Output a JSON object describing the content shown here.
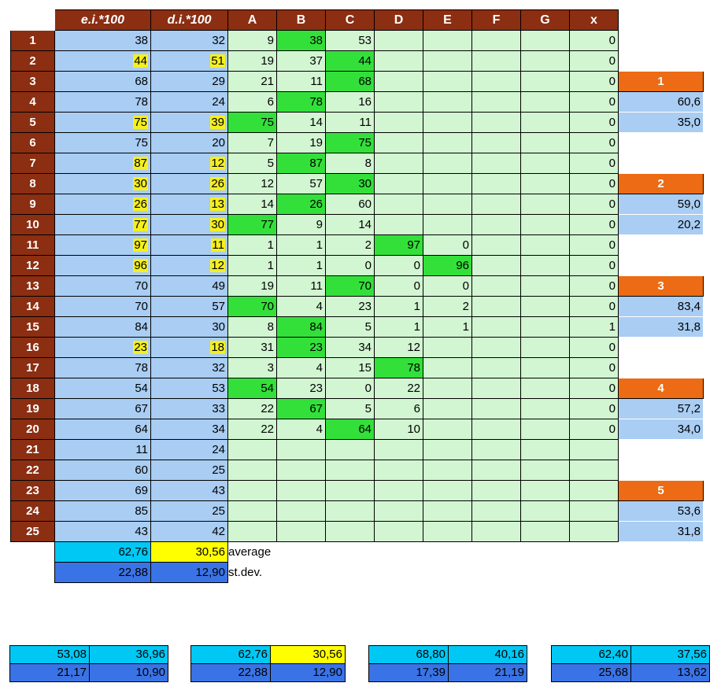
{
  "headers": [
    "",
    "e.i.*100",
    "d.i.*100",
    "A",
    "B",
    "C",
    "D",
    "E",
    "F",
    "G",
    "x",
    ""
  ],
  "rows": [
    {
      "n": "1",
      "ei": "38",
      "di": "32",
      "A": "9",
      "B": "38",
      "C": "53",
      "D": "",
      "E": "",
      "x": "0",
      "side": "",
      "hl": [
        "B"
      ]
    },
    {
      "n": "2",
      "ei": "44",
      "di": "51",
      "A": "19",
      "B": "37",
      "C": "44",
      "D": "",
      "E": "",
      "x": "0",
      "side": "",
      "hl": [
        "C"
      ],
      "yel": [
        "ei",
        "di"
      ]
    },
    {
      "n": "3",
      "ei": "68",
      "di": "29",
      "A": "21",
      "B": "11",
      "C": "68",
      "D": "",
      "E": "",
      "x": "0",
      "side": "1",
      "sideType": "orange",
      "hl": [
        "C"
      ]
    },
    {
      "n": "4",
      "ei": "78",
      "di": "24",
      "A": "6",
      "B": "78",
      "C": "16",
      "D": "",
      "E": "",
      "x": "0",
      "side": "60,6",
      "sideType": "blue",
      "hl": [
        "B"
      ]
    },
    {
      "n": "5",
      "ei": "75",
      "di": "39",
      "A": "75",
      "B": "14",
      "C": "11",
      "D": "",
      "E": "",
      "x": "0",
      "side": "35,0",
      "sideType": "blue",
      "hl": [
        "A"
      ],
      "yel": [
        "ei",
        "di"
      ]
    },
    {
      "n": "6",
      "ei": "75",
      "di": "20",
      "A": "7",
      "B": "19",
      "C": "75",
      "D": "",
      "E": "",
      "x": "0",
      "side": "",
      "hl": [
        "C"
      ]
    },
    {
      "n": "7",
      "ei": "87",
      "di": "12",
      "A": "5",
      "B": "87",
      "C": "8",
      "D": "",
      "E": "",
      "x": "0",
      "side": "",
      "hl": [
        "B"
      ],
      "yel": [
        "ei",
        "di"
      ]
    },
    {
      "n": "8",
      "ei": "30",
      "di": "26",
      "A": "12",
      "B": "57",
      "C": "30",
      "D": "",
      "E": "",
      "x": "0",
      "side": "2",
      "sideType": "orange",
      "hl": [
        "C"
      ],
      "yel": [
        "ei",
        "di"
      ]
    },
    {
      "n": "9",
      "ei": "26",
      "di": "13",
      "A": "14",
      "B": "26",
      "C": "60",
      "D": "",
      "E": "",
      "x": "0",
      "side": "59,0",
      "sideType": "blue",
      "hl": [
        "B"
      ],
      "yel": [
        "ei",
        "di"
      ]
    },
    {
      "n": "10",
      "ei": "77",
      "di": "30",
      "A": "77",
      "B": "9",
      "C": "14",
      "D": "",
      "E": "",
      "x": "0",
      "side": "20,2",
      "sideType": "blue",
      "hl": [
        "A"
      ],
      "yel": [
        "ei",
        "di"
      ]
    },
    {
      "n": "11",
      "ei": "97",
      "di": "11",
      "A": "1",
      "B": "1",
      "C": "2",
      "D": "97",
      "E": "0",
      "x": "0",
      "side": "",
      "hl": [
        "D"
      ],
      "yel": [
        "ei",
        "di"
      ]
    },
    {
      "n": "12",
      "ei": "96",
      "di": "12",
      "A": "1",
      "B": "1",
      "C": "0",
      "D": "0",
      "E": "96",
      "x": "0",
      "side": "",
      "hl": [
        "E"
      ],
      "yel": [
        "ei",
        "di"
      ]
    },
    {
      "n": "13",
      "ei": "70",
      "di": "49",
      "A": "19",
      "B": "11",
      "C": "70",
      "D": "0",
      "E": "0",
      "x": "0",
      "side": "3",
      "sideType": "orange",
      "hl": [
        "C"
      ]
    },
    {
      "n": "14",
      "ei": "70",
      "di": "57",
      "A": "70",
      "B": "4",
      "C": "23",
      "D": "1",
      "E": "2",
      "x": "0",
      "side": "83,4",
      "sideType": "blue",
      "hl": [
        "A"
      ]
    },
    {
      "n": "15",
      "ei": "84",
      "di": "30",
      "A": "8",
      "B": "84",
      "C": "5",
      "D": "1",
      "E": "1",
      "x": "1",
      "side": "31,8",
      "sideType": "blue",
      "hl": [
        "B"
      ]
    },
    {
      "n": "16",
      "ei": "23",
      "di": "18",
      "A": "31",
      "B": "23",
      "C": "34",
      "D": "12",
      "E": "",
      "x": "0",
      "side": "",
      "hl": [
        "B"
      ],
      "yel": [
        "ei",
        "di"
      ]
    },
    {
      "n": "17",
      "ei": "78",
      "di": "32",
      "A": "3",
      "B": "4",
      "C": "15",
      "D": "78",
      "E": "",
      "x": "0",
      "side": "",
      "hl": [
        "D"
      ]
    },
    {
      "n": "18",
      "ei": "54",
      "di": "53",
      "A": "54",
      "B": "23",
      "C": "0",
      "D": "22",
      "E": "",
      "x": "0",
      "side": "4",
      "sideType": "orange",
      "hl": [
        "A"
      ]
    },
    {
      "n": "19",
      "ei": "67",
      "di": "33",
      "A": "22",
      "B": "67",
      "C": "5",
      "D": "6",
      "E": "",
      "x": "0",
      "side": "57,2",
      "sideType": "blue",
      "hl": [
        "B"
      ]
    },
    {
      "n": "20",
      "ei": "64",
      "di": "34",
      "A": "22",
      "B": "4",
      "C": "64",
      "D": "10",
      "E": "",
      "x": "0",
      "side": "34,0",
      "sideType": "blue",
      "hl": [
        "C"
      ]
    },
    {
      "n": "21",
      "ei": "11",
      "di": "24",
      "A": "",
      "B": "",
      "C": "",
      "D": "",
      "E": "",
      "x": "",
      "side": "",
      "hl": []
    },
    {
      "n": "22",
      "ei": "60",
      "di": "25",
      "A": "",
      "B": "",
      "C": "",
      "D": "",
      "E": "",
      "x": "",
      "side": "",
      "hl": []
    },
    {
      "n": "23",
      "ei": "69",
      "di": "43",
      "A": "",
      "B": "",
      "C": "",
      "D": "",
      "E": "",
      "x": "",
      "side": "5",
      "sideType": "orange",
      "hl": []
    },
    {
      "n": "24",
      "ei": "85",
      "di": "25",
      "A": "",
      "B": "",
      "C": "",
      "D": "",
      "E": "",
      "x": "",
      "side": "53,6",
      "sideType": "blue",
      "hl": []
    },
    {
      "n": "25",
      "ei": "43",
      "di": "42",
      "A": "",
      "B": "",
      "C": "",
      "D": "",
      "E": "",
      "x": "",
      "side": "31,8",
      "sideType": "blue",
      "hl": []
    }
  ],
  "average": {
    "ei": "62,76",
    "di": "30,56",
    "label": "average"
  },
  "stdev": {
    "ei": "22,88",
    "di": "12,90",
    "label": "st.dev."
  },
  "summary": [
    {
      "avg1": "53,08",
      "avg2": "36,96",
      "sd1": "21,17",
      "sd2": "10,90",
      "yellow": false
    },
    {
      "avg1": "62,76",
      "avg2": "30,56",
      "sd1": "22,88",
      "sd2": "12,90",
      "yellow": true
    },
    {
      "avg1": "68,80",
      "avg2": "40,16",
      "sd1": "17,39",
      "sd2": "21,19",
      "yellow": false
    },
    {
      "avg1": "62,40",
      "avg2": "37,56",
      "sd1": "25,68",
      "sd2": "13,62",
      "yellow": false
    }
  ]
}
